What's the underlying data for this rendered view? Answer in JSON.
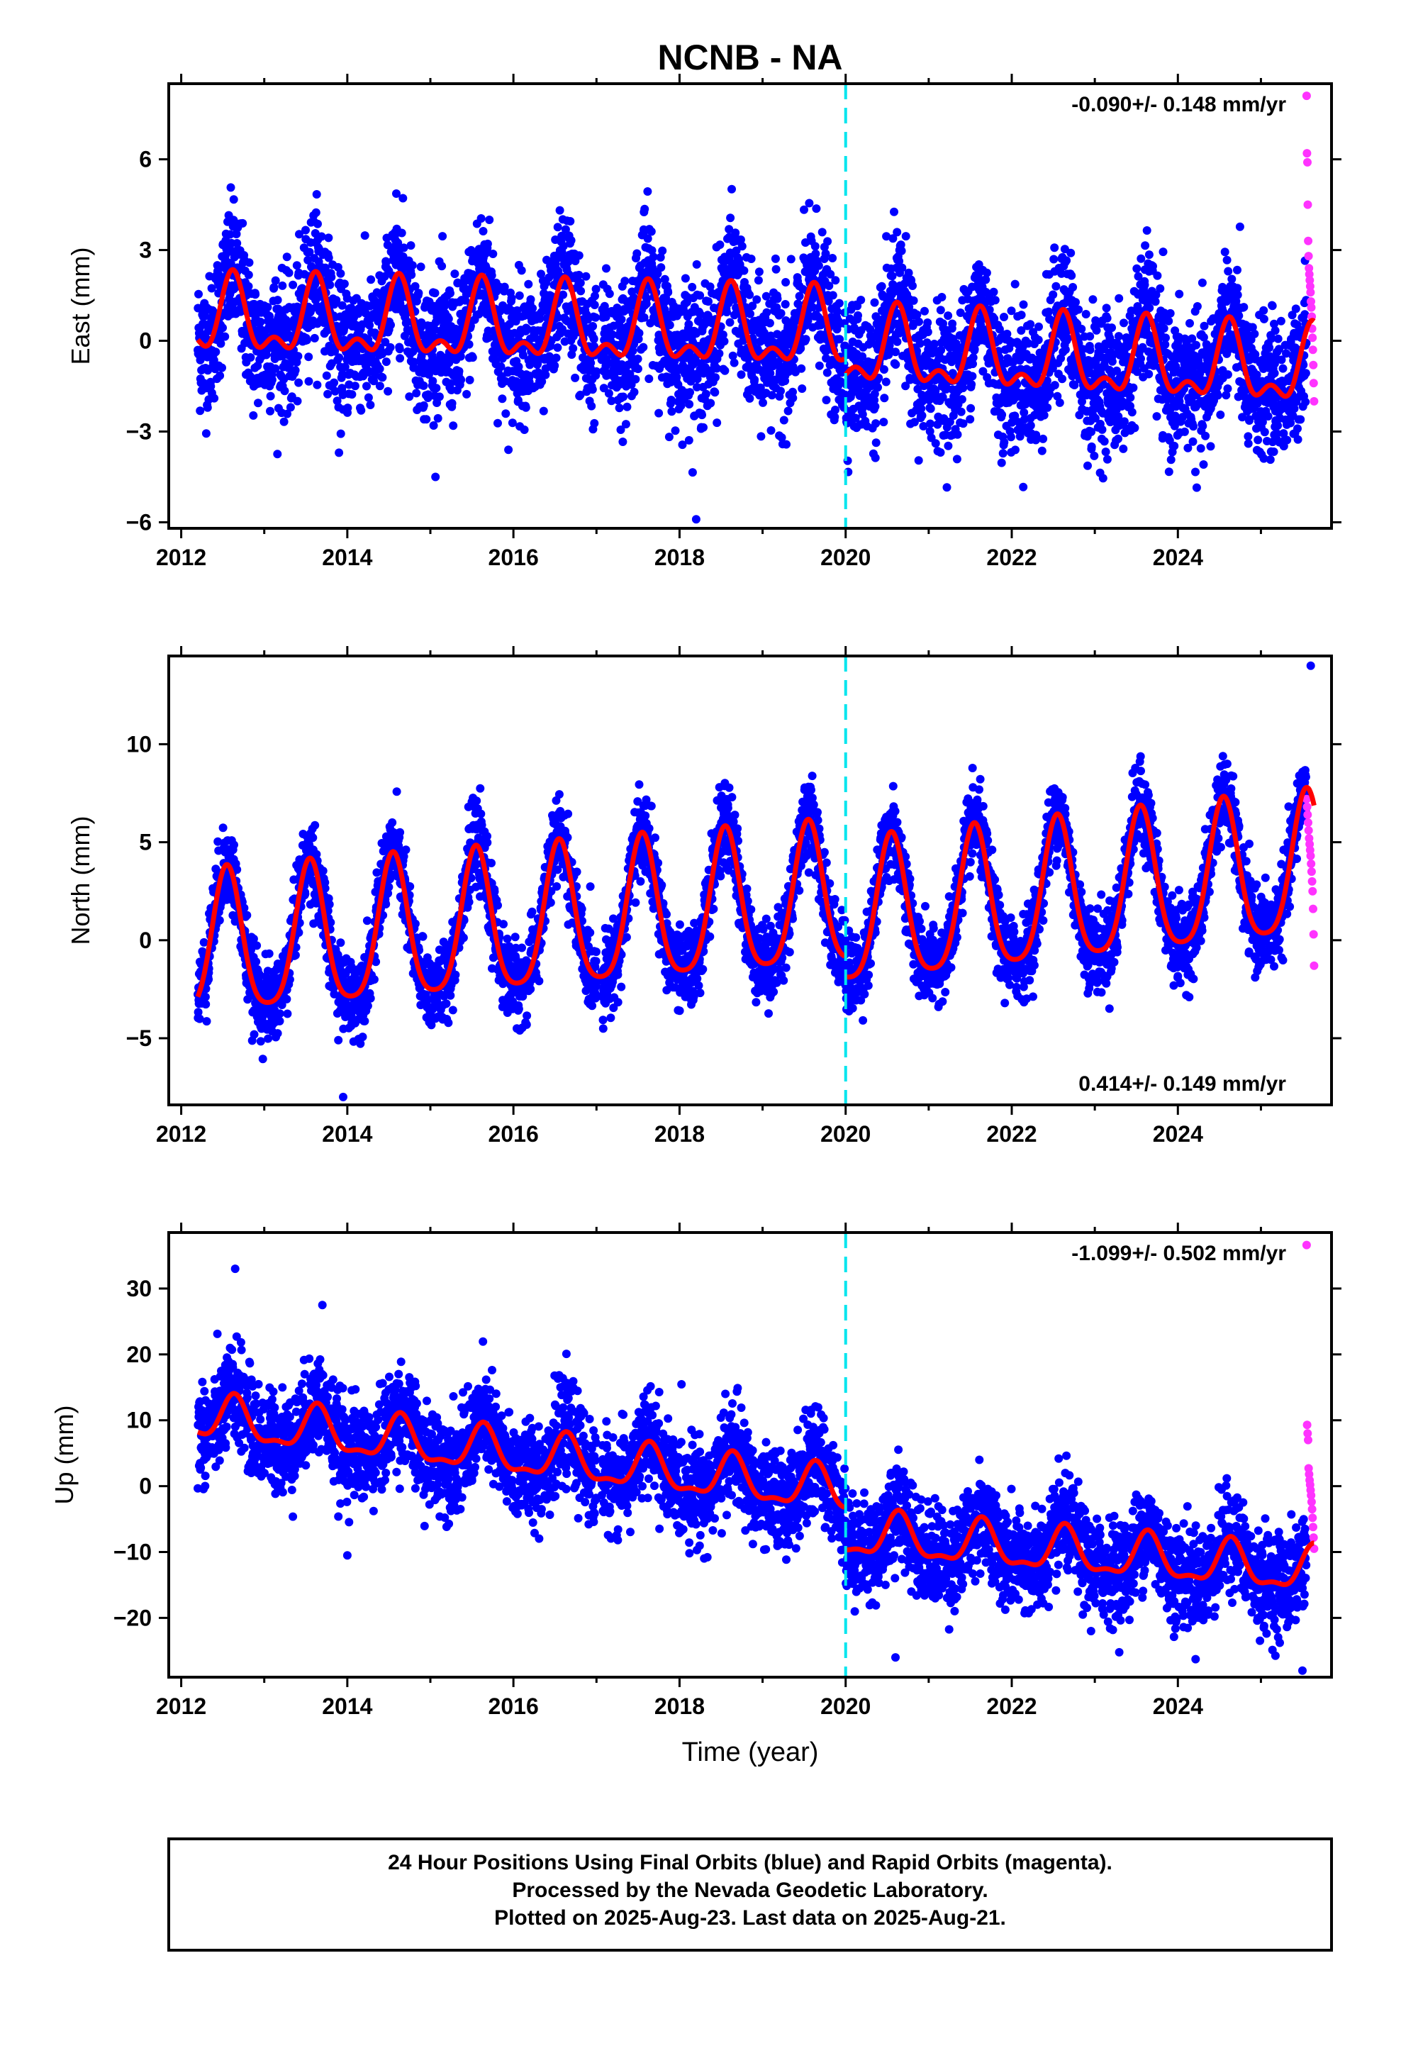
{
  "title": "NCNB - NA",
  "xlabel": "Time (year)",
  "footer": {
    "line1": "24 Hour Positions Using Final Orbits (blue) and Rapid Orbits (magenta).",
    "line2": "Processed by the Nevada Geodetic Laboratory.",
    "line3": "Plotted on 2025-Aug-23. Last data on 2025-Aug-21."
  },
  "colors": {
    "final": "#0000ff",
    "rapid": "#ff33ff",
    "model": "#ff0000",
    "event_line": "#00e5ee",
    "frame": "#000000"
  },
  "chart_data": [
    {
      "type": "scatter",
      "component": "East",
      "ylabel": "East (mm)",
      "rate_label": "-0.090+/- 0.148 mm/yr",
      "rate_position": "top-right",
      "xlim": [
        2011.85,
        2025.85
      ],
      "ylim": [
        -6.2,
        8.5
      ],
      "xticks": [
        2012,
        2014,
        2016,
        2018,
        2020,
        2022,
        2024
      ],
      "yticks": [
        -6,
        -3,
        0,
        3,
        6
      ],
      "event_lines": [
        2020.0
      ],
      "model": {
        "amp1": 1.1,
        "phase1": 0.62,
        "amp2": 0.6,
        "phase2": 0.62,
        "trend_pre": -0.06,
        "offset_pre": 0.45,
        "trend_post": -0.12,
        "offset_post": -0.35,
        "noise": 1.1
      },
      "final_range": [
        2012.2,
        2025.55
      ],
      "rapid_range": [
        2025.55,
        2025.64
      ],
      "rapid_values": [
        8.1,
        6.2,
        5.9,
        4.5,
        3.3,
        2.8,
        2.4,
        2.2,
        2.0,
        1.8,
        1.6,
        1.3,
        1.1,
        0.8,
        0.4,
        0.1,
        -0.3,
        -0.8,
        -1.4,
        -2.0
      ],
      "outliers": [
        [
          2018.2,
          -5.9
        ],
        [
          2013.9,
          -3.7
        ]
      ]
    },
    {
      "type": "scatter",
      "component": "North",
      "ylabel": "North (mm)",
      "rate_label": "0.414+/- 0.149 mm/yr",
      "rate_position": "bottom-right",
      "xlim": [
        2011.85,
        2025.85
      ],
      "ylim": [
        -8.4,
        14.5
      ],
      "xticks": [
        2012,
        2014,
        2016,
        2018,
        2020,
        2022,
        2024
      ],
      "yticks": [
        -5,
        0,
        5,
        10
      ],
      "event_lines": [
        2020.0
      ],
      "model": {
        "amp1": 3.6,
        "phase1": 0.55,
        "amp2": 0.7,
        "phase2": 0.05,
        "trend_pre": 0.33,
        "offset_pre": 0.7,
        "trend_post": 0.45,
        "offset_post": 1.0,
        "noise": 1.0
      },
      "final_range": [
        2012.2,
        2025.55
      ],
      "rapid_range": [
        2025.55,
        2025.64
      ],
      "rapid_values": [
        7.2,
        6.8,
        6.4,
        6.0,
        5.6,
        5.2,
        4.9,
        4.6,
        4.3,
        3.9,
        3.5,
        3.0,
        2.5,
        1.6,
        0.3,
        -1.3
      ],
      "outliers": [
        [
          2025.6,
          14.0
        ],
        [
          2013.95,
          -8.0
        ]
      ]
    },
    {
      "type": "scatter",
      "component": "Up",
      "ylabel": "Up (mm)",
      "rate_label": "-1.099+/- 0.502 mm/yr",
      "rate_position": "top-right",
      "xlim": [
        2011.85,
        2025.85
      ],
      "ylim": [
        -29,
        38.5
      ],
      "xticks": [
        2012,
        2014,
        2016,
        2018,
        2020,
        2022,
        2024
      ],
      "yticks": [
        -20,
        -10,
        0,
        10,
        20,
        30
      ],
      "event_lines": [
        2020.0
      ],
      "model": {
        "amp1": 3.2,
        "phase1": 0.64,
        "amp2": 1.2,
        "phase2": 0.64,
        "trend_pre": -1.45,
        "offset_pre": 4.8,
        "trend_post": -1.0,
        "offset_post": -7.4,
        "noise": 3.7
      },
      "final_range": [
        2012.2,
        2025.55
      ],
      "rapid_range": [
        2025.55,
        2025.64
      ],
      "rapid_values": [
        36.6,
        9.3,
        8.0,
        7.0,
        2.7,
        1.8,
        0.9,
        0.2,
        -0.6,
        -1.4,
        -2.4,
        -3.5,
        -4.8,
        -6.2,
        -7.8,
        -9.5
      ],
      "outliers": [
        [
          2012.65,
          33.0
        ],
        [
          2013.7,
          27.5
        ],
        [
          2020.6,
          -26.0
        ],
        [
          2025.5,
          -28.0
        ],
        [
          2014.0,
          -10.5
        ]
      ]
    }
  ]
}
